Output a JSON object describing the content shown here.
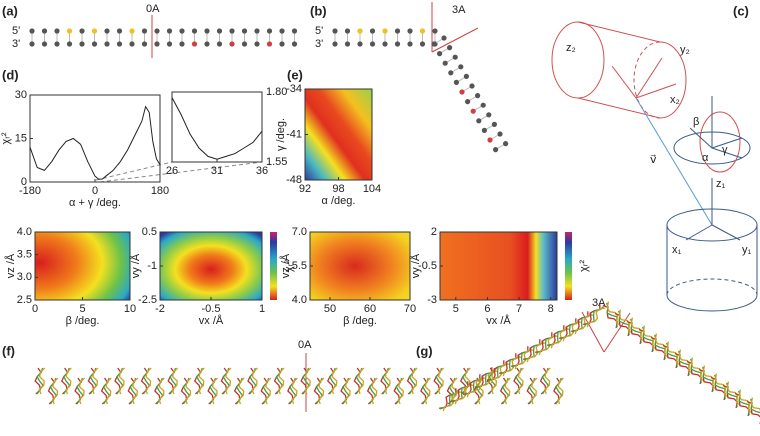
{
  "labels": {
    "a": "(a)",
    "b": "(b)",
    "c": "(c)",
    "d": "(d)",
    "e": "(e)",
    "f": "(f)",
    "g": "(g)"
  },
  "annotations": {
    "a_marker": "0A",
    "b_marker": "3A",
    "f_marker": "0A",
    "g_marker": "3A",
    "five_a": "5'",
    "three_a": "3'",
    "five_b": "5'",
    "three_b": "3'"
  },
  "diagram": {
    "labels": [
      "z₂",
      "y₂",
      "x₂",
      "β",
      "α",
      "γ",
      "v⃗",
      "z₁",
      "x₁",
      "y₁"
    ]
  },
  "chart_data": [
    {
      "type": "line",
      "xlabel": "α + γ  /deg.",
      "ylabel": "χᵣ²",
      "color": "#222",
      "x": [
        -180,
        -160,
        -140,
        -120,
        -100,
        -80,
        -60,
        -40,
        -20,
        0,
        10,
        20,
        30,
        50,
        70,
        90,
        110,
        130,
        140,
        150,
        160,
        170,
        180
      ],
      "values": [
        12,
        5,
        4,
        7,
        11,
        14,
        15,
        13,
        7,
        2,
        1,
        1,
        2,
        4,
        7,
        11,
        16,
        21,
        26,
        24,
        14,
        8,
        6
      ],
      "xlim": [
        -180,
        180
      ],
      "ylim": [
        0,
        30
      ],
      "xticks": [
        -180,
        0,
        180
      ],
      "yticks": [
        0,
        15,
        30
      ]
    },
    {
      "type": "line",
      "color": "#222",
      "x": [
        26,
        27,
        28,
        29,
        30,
        31,
        32,
        33,
        34,
        35,
        36
      ],
      "values": [
        1.78,
        1.72,
        1.65,
        1.6,
        1.57,
        1.56,
        1.57,
        1.58,
        1.6,
        1.62,
        1.66
      ],
      "xlim": [
        26,
        36
      ],
      "ylim": [
        1.55,
        1.8
      ],
      "xticks": [
        26,
        31,
        36
      ],
      "yticks": [
        1.55,
        {
          "value": 1.8,
          "label": "1.80"
        }
      ]
    },
    {
      "type": "heatmap",
      "xlabel": "α /deg.",
      "ylabel": "γ /deg.",
      "xlim": [
        92,
        104
      ],
      "ylim": [
        -48,
        -34
      ],
      "xticks": [
        92,
        98,
        104
      ],
      "yticks": [
        -48,
        -41,
        -34
      ]
    },
    {
      "type": "heatmap",
      "xlabel": "β  /deg.",
      "ylabel": "vz /Å",
      "xlim": [
        0,
        10
      ],
      "ylim": [
        2.5,
        4
      ],
      "xticks": [
        0,
        5,
        10
      ],
      "yticks": [
        2.5,
        {
          "value": 3,
          "label": "3.0"
        },
        3.5,
        {
          "value": 4,
          "label": "4.0"
        }
      ]
    },
    {
      "type": "heatmap",
      "xlabel": "vx /Å",
      "ylabel": "vy /Å",
      "colorbar_label": "χᵣ²",
      "xlim": [
        -2,
        1
      ],
      "ylim": [
        -2.5,
        0.5
      ],
      "xticks": [
        -2,
        -0.5,
        1
      ],
      "yticks": [
        -2.5,
        -1,
        0.5
      ]
    },
    {
      "type": "heatmap",
      "xlabel": "β  /deg.",
      "ylabel": "vz /Å",
      "xlim": [
        45,
        70
      ],
      "ylim": [
        4,
        7
      ],
      "xticks": [
        50,
        60,
        70
      ],
      "yticks": [
        {
          "value": 4,
          "label": "4.0"
        },
        5.5,
        {
          "value": 7,
          "label": "7.0"
        }
      ]
    },
    {
      "type": "heatmap",
      "xlabel": "vx /Å",
      "ylabel": "vy /Å",
      "colorbar_label": "χᵣ²",
      "xlim": [
        4.5,
        8.2
      ],
      "ylim": [
        -3,
        2
      ],
      "xticks": [
        5,
        6,
        7,
        8
      ],
      "yticks": [
        -3,
        -0.5,
        2
      ]
    }
  ]
}
